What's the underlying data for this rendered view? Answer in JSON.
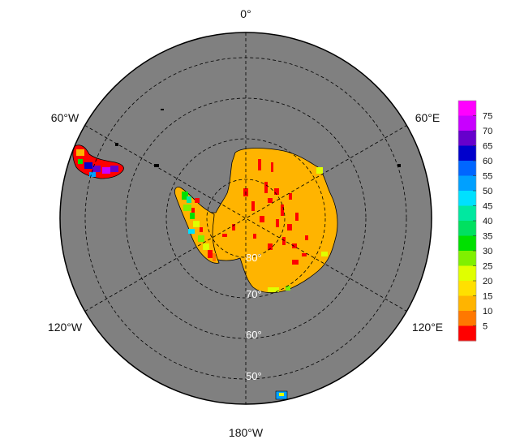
{
  "map": {
    "projection": "south-polar-stereographic",
    "ocean_color": "#808080",
    "land_color": "#ffffff",
    "land_fill_color": "#ffb400",
    "coast_color": "#000000",
    "lon_labels": {
      "top": "0°",
      "upper_right": "60°E",
      "lower_right": "120°E",
      "bottom": "180°W",
      "lower_left": "120°W",
      "upper_left": "60°W"
    },
    "lat_labels": [
      "80°",
      "70°",
      "60°",
      "50°"
    ]
  },
  "colorbar": {
    "ticks": [
      "75",
      "70",
      "65",
      "60",
      "55",
      "50",
      "45",
      "40",
      "35",
      "30",
      "25",
      "20",
      "15",
      "10",
      "5"
    ],
    "colors": [
      "#ff00ff",
      "#c800ff",
      "#6600cc",
      "#0000cc",
      "#0066ff",
      "#00a0ff",
      "#00e0ff",
      "#00e8a0",
      "#00e060",
      "#00e000",
      "#80f000",
      "#e0ff00",
      "#ffe000",
      "#ffb400",
      "#ff7800",
      "#ff0000"
    ]
  }
}
